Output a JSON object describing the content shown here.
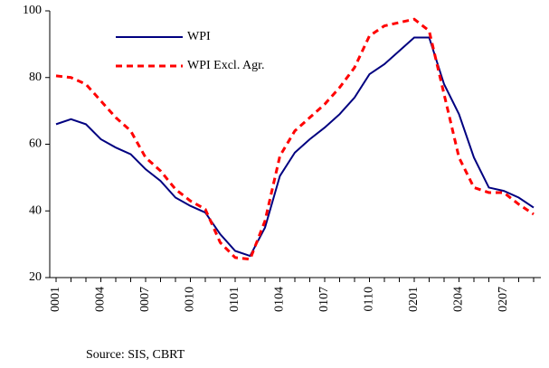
{
  "chart_data": {
    "type": "line",
    "categories": [
      "0001",
      null,
      null,
      "0004",
      null,
      null,
      "0007",
      null,
      null,
      "0010",
      null,
      null,
      "0101",
      null,
      null,
      "0104",
      null,
      null,
      "0107",
      null,
      null,
      "0110",
      null,
      null,
      "0201",
      null,
      null,
      "0204",
      null,
      null,
      "0207",
      null,
      null
    ],
    "series": [
      {
        "name": "WPI",
        "color": "#000080",
        "dash": false,
        "values": [
          66,
          67.5,
          66,
          61.5,
          59,
          57,
          52.5,
          49,
          44,
          41.5,
          39.5,
          33,
          28,
          26.5,
          35,
          50.5,
          57.5,
          61.5,
          65,
          69,
          74,
          81,
          84,
          88,
          92,
          92,
          78,
          69,
          56,
          47,
          46,
          44,
          41
        ]
      },
      {
        "name": "WPI Excl. Agr.",
        "color": "#ff0000",
        "dash": true,
        "values": [
          80.5,
          80,
          78,
          73,
          68,
          64,
          56,
          52,
          46.5,
          43,
          40.5,
          30.5,
          26,
          25.5,
          37,
          56.5,
          64,
          68,
          72,
          77,
          83,
          92.5,
          95.5,
          96.5,
          97.5,
          94,
          75,
          56,
          47,
          45.5,
          45.5,
          42,
          39
        ]
      }
    ],
    "ylim": [
      20,
      100
    ],
    "yticks": [
      20,
      40,
      60,
      80,
      100
    ],
    "source": "Source: SIS, CBRT"
  }
}
